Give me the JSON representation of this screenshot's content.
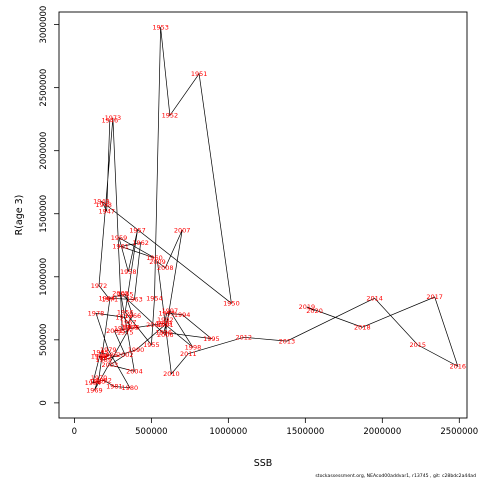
{
  "chart_data": {
    "type": "line",
    "xlabel": "SSB",
    "ylabel": "R(age 3)",
    "xlim": [
      -100000,
      2550000
    ],
    "ylim": [
      -120000,
      3100000
    ],
    "x_ticks": [
      0,
      500000,
      1000000,
      1500000,
      2000000,
      2500000
    ],
    "y_ticks": [
      0,
      500000,
      1000000,
      1500000,
      2000000,
      2500000,
      3000000
    ],
    "x_tick_labels": [
      "0",
      "500000",
      "1000000",
      "1500000",
      "2000000",
      "2500000"
    ],
    "y_tick_labels": [
      "0",
      "500000",
      "1000000",
      "1500000",
      "2000000",
      "2500000",
      "3000000"
    ],
    "grid": false,
    "line_color": "#000000",
    "label_color": "#ff0000",
    "footer": "stockassessment.org, NEAcod00addvar1, r13745 , git: c28bdc2a44ad",
    "points": [
      {
        "year": "1946",
        "ssb": 230000,
        "r": 2240000
      },
      {
        "year": "1947",
        "ssb": 210000,
        "r": 1520000
      },
      {
        "year": "1948",
        "ssb": 190000,
        "r": 1570000
      },
      {
        "year": "1949",
        "ssb": 175000,
        "r": 1600000
      },
      {
        "year": "1950",
        "ssb": 1020000,
        "r": 790000
      },
      {
        "year": "1951",
        "ssb": 810000,
        "r": 2610000
      },
      {
        "year": "1952",
        "ssb": 620000,
        "r": 2280000
      },
      {
        "year": "1953",
        "ssb": 560000,
        "r": 2980000
      },
      {
        "year": "1954",
        "ssb": 520000,
        "r": 830000
      },
      {
        "year": "1955",
        "ssb": 500000,
        "r": 460000
      },
      {
        "year": "1956",
        "ssb": 330000,
        "r": 720000
      },
      {
        "year": "1957",
        "ssb": 410000,
        "r": 1370000
      },
      {
        "year": "1958",
        "ssb": 350000,
        "r": 1040000
      },
      {
        "year": "1959",
        "ssb": 290000,
        "r": 1310000
      },
      {
        "year": "1960",
        "ssb": 520000,
        "r": 1150000
      },
      {
        "year": "1961",
        "ssb": 300000,
        "r": 1240000
      },
      {
        "year": "1962",
        "ssb": 430000,
        "r": 1270000
      },
      {
        "year": "1963",
        "ssb": 390000,
        "r": 820000
      },
      {
        "year": "1964",
        "ssb": 210000,
        "r": 830000
      },
      {
        "year": "1965",
        "ssb": 330000,
        "r": 860000
      },
      {
        "year": "1966",
        "ssb": 380000,
        "r": 690000
      },
      {
        "year": "1967",
        "ssb": 350000,
        "r": 640000
      },
      {
        "year": "1968",
        "ssb": 360000,
        "r": 600000
      },
      {
        "year": "1969",
        "ssb": 130000,
        "r": 100000
      },
      {
        "year": "1970",
        "ssb": 160000,
        "r": 200000
      },
      {
        "year": "1971",
        "ssb": 230000,
        "r": 820000
      },
      {
        "year": "1972",
        "ssb": 160000,
        "r": 930000
      },
      {
        "year": "1973",
        "ssb": 250000,
        "r": 2260000
      },
      {
        "year": "1974",
        "ssb": 310000,
        "r": 590000
      },
      {
        "year": "1975",
        "ssb": 330000,
        "r": 560000
      },
      {
        "year": "1976",
        "ssb": 370000,
        "r": 600000
      },
      {
        "year": "1977",
        "ssb": 320000,
        "r": 680000
      },
      {
        "year": "1978",
        "ssb": 140000,
        "r": 710000
      },
      {
        "year": "1979",
        "ssb": 220000,
        "r": 420000
      },
      {
        "year": "1980",
        "ssb": 360000,
        "r": 120000
      },
      {
        "year": "1981",
        "ssb": 260000,
        "r": 130000
      },
      {
        "year": "1982",
        "ssb": 190000,
        "r": 180000
      },
      {
        "year": "1983",
        "ssb": 150000,
        "r": 170000
      },
      {
        "year": "1984",
        "ssb": 120000,
        "r": 160000
      },
      {
        "year": "1985",
        "ssb": 170000,
        "r": 400000
      },
      {
        "year": "1986",
        "ssb": 230000,
        "r": 380000
      },
      {
        "year": "1987",
        "ssb": 190000,
        "r": 360000
      },
      {
        "year": "1988",
        "ssb": 160000,
        "r": 370000
      },
      {
        "year": "1989",
        "ssb": 190000,
        "r": 340000
      },
      {
        "year": "1990",
        "ssb": 400000,
        "r": 420000
      },
      {
        "year": "1991",
        "ssb": 590000,
        "r": 620000
      },
      {
        "year": "1992",
        "ssb": 590000,
        "r": 660000
      },
      {
        "year": "1993",
        "ssb": 600000,
        "r": 710000
      },
      {
        "year": "1994",
        "ssb": 700000,
        "r": 700000
      },
      {
        "year": "1995",
        "ssb": 890000,
        "r": 510000
      },
      {
        "year": "1996",
        "ssb": 580000,
        "r": 560000
      },
      {
        "year": "1997",
        "ssb": 620000,
        "r": 730000
      },
      {
        "year": "1998",
        "ssb": 770000,
        "r": 440000
      },
      {
        "year": "1999",
        "ssb": 580000,
        "r": 630000
      },
      {
        "year": "2000",
        "ssb": 520000,
        "r": 620000
      },
      {
        "year": "2001",
        "ssb": 260000,
        "r": 570000
      },
      {
        "year": "2002",
        "ssb": 330000,
        "r": 380000
      },
      {
        "year": "2003",
        "ssb": 230000,
        "r": 300000
      },
      {
        "year": "2004",
        "ssb": 390000,
        "r": 250000
      },
      {
        "year": "2005",
        "ssb": 300000,
        "r": 870000
      },
      {
        "year": "2006",
        "ssb": 590000,
        "r": 540000
      },
      {
        "year": "2007",
        "ssb": 700000,
        "r": 1370000
      },
      {
        "year": "2008",
        "ssb": 590000,
        "r": 1070000
      },
      {
        "year": "2009",
        "ssb": 540000,
        "r": 1120000
      },
      {
        "year": "2010",
        "ssb": 630000,
        "r": 230000
      },
      {
        "year": "2011",
        "ssb": 740000,
        "r": 390000
      },
      {
        "year": "2012",
        "ssb": 1100000,
        "r": 520000
      },
      {
        "year": "2013",
        "ssb": 1380000,
        "r": 490000
      },
      {
        "year": "2014",
        "ssb": 1950000,
        "r": 830000
      },
      {
        "year": "2015",
        "ssb": 2230000,
        "r": 460000
      },
      {
        "year": "2016",
        "ssb": 2490000,
        "r": 290000
      },
      {
        "year": "2017",
        "ssb": 2340000,
        "r": 840000
      },
      {
        "year": "2018",
        "ssb": 1870000,
        "r": 600000
      },
      {
        "year": "2019",
        "ssb": 1510000,
        "r": 760000
      },
      {
        "year": "2020",
        "ssb": 1560000,
        "r": 730000
      }
    ]
  }
}
